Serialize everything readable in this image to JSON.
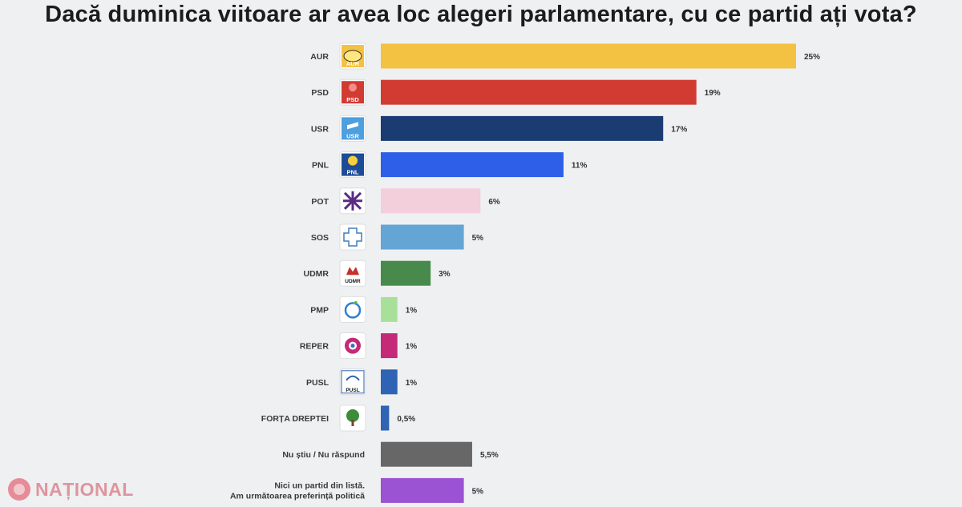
{
  "title": "Dacă duminica viitoare ar avea loc alegeri parlamentare, cu ce partid ați vota?",
  "watermark": "NAȚIONAL",
  "chart_data": {
    "type": "bar",
    "orientation": "horizontal",
    "unit": "%",
    "title": "Dacă duminica viitoare ar avea loc alegeri parlamentare, cu ce partid ați vota?",
    "xlim": [
      0,
      25
    ],
    "grid": false,
    "legend": "none",
    "bars": [
      {
        "category": [
          "AUR"
        ],
        "value": 25,
        "value_label": "25%",
        "color": "#f4c242",
        "icon": "aur-logo",
        "logo_text": "AUR"
      },
      {
        "category": [
          "PSD"
        ],
        "value": 19,
        "value_label": "19%",
        "color": "#d23b32",
        "icon": "psd-logo",
        "logo_text": "PSD"
      },
      {
        "category": [
          "USR"
        ],
        "value": 17,
        "value_label": "17%",
        "color": "#1b3c73",
        "icon": "usr-logo",
        "logo_text": "USR"
      },
      {
        "category": [
          "PNL"
        ],
        "value": 11,
        "value_label": "11%",
        "color": "#2e5fe8",
        "icon": "pnl-logo",
        "logo_text": "PNL"
      },
      {
        "category": [
          "POT"
        ],
        "value": 6,
        "value_label": "6%",
        "color": "#f3cedb",
        "icon": "pot-logo",
        "logo_text": ""
      },
      {
        "category": [
          "SOS"
        ],
        "value": 5,
        "value_label": "5%",
        "color": "#64a5d6",
        "icon": "sos-logo",
        "logo_text": ""
      },
      {
        "category": [
          "UDMR"
        ],
        "value": 3,
        "value_label": "3%",
        "color": "#478a4b",
        "icon": "udmr-logo",
        "logo_text": "UDMR"
      },
      {
        "category": [
          "PMP"
        ],
        "value": 1,
        "value_label": "1%",
        "color": "#a8e09a",
        "icon": "pmp-logo",
        "logo_text": ""
      },
      {
        "category": [
          "REPER"
        ],
        "value": 1,
        "value_label": "1%",
        "color": "#c42a78",
        "icon": "reper-logo",
        "logo_text": ""
      },
      {
        "category": [
          "PUSL"
        ],
        "value": 1,
        "value_label": "1%",
        "color": "#2f63b4",
        "icon": "pusl-logo",
        "logo_text": "PUSL"
      },
      {
        "category": [
          "FORȚA DREPTEI"
        ],
        "value": 0.5,
        "value_label": "0,5%",
        "color": "#2f63b4",
        "icon": "forta-dreptei-logo",
        "logo_text": ""
      },
      {
        "category": [
          "Nu știu / Nu răspund"
        ],
        "value": 5.5,
        "value_label": "5,5%",
        "color": "#676767",
        "icon": "",
        "logo_text": ""
      },
      {
        "category": [
          "Nici un partid din listă.",
          "Am următoarea preferință politică"
        ],
        "value": 5,
        "value_label": "5%",
        "color": "#9b52d3",
        "icon": "",
        "logo_text": ""
      }
    ]
  }
}
